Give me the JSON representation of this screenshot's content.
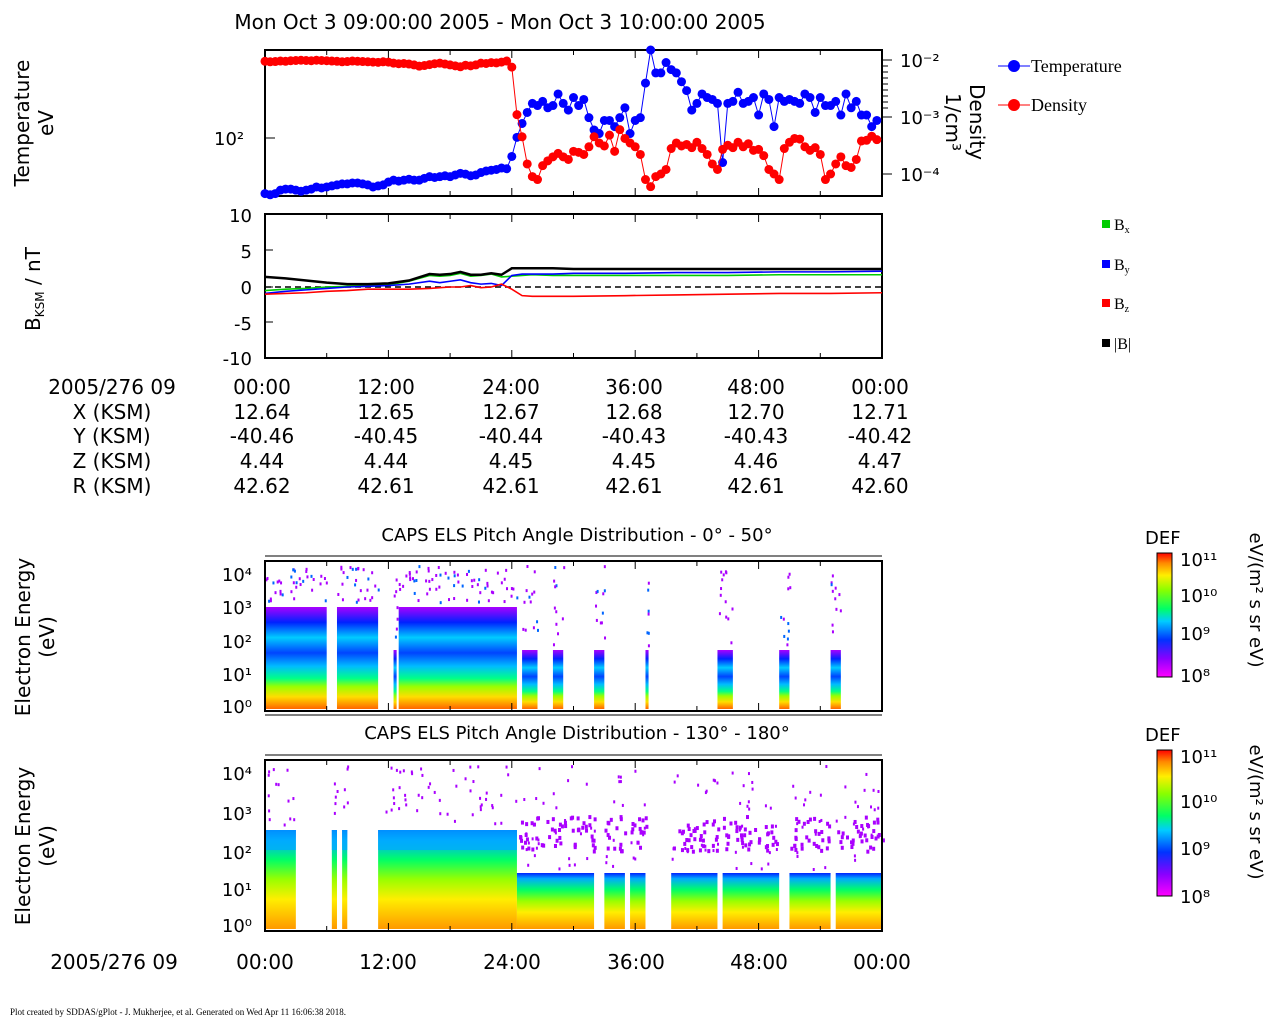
{
  "title": "Mon Oct 3 09:00:00 2005 - Mon Oct 3 10:00:00 2005",
  "footer": "Plot created by SDDAS/gPlot - J. Mukherjee, et al.  Generated on Wed Apr 11 16:06:38 2018.",
  "colors": {
    "temperature": "#0000ff",
    "density": "#ff0000",
    "bx": "#00cc00",
    "by": "#0000ff",
    "bz": "#ff0000",
    "bmag": "#000000"
  },
  "chart_data": [
    {
      "type": "scatter",
      "ylabel_left": [
        "Temperature",
        "eV"
      ],
      "ylabel_right": [
        "Density",
        "1/cm³"
      ],
      "y_left_scale": "log",
      "y_left_tick_label": "10²",
      "y_right_scale": "log",
      "y_right_tick_labels": [
        "10⁻²",
        "10⁻³",
        "10⁻⁴"
      ],
      "legend": [
        "Temperature",
        "Density"
      ],
      "legend_placement": "right",
      "x_minutes": [
        0,
        0.5,
        1,
        1.5,
        2,
        2.5,
        3,
        3.5,
        4,
        4.5,
        5,
        5.5,
        6,
        6.5,
        7,
        7.5,
        8,
        8.5,
        9,
        9.5,
        10,
        10.5,
        11,
        11.5,
        12,
        12.5,
        13,
        13.5,
        14,
        14.5,
        15,
        15.5,
        16,
        16.5,
        17,
        17.5,
        18,
        18.5,
        19,
        19.5,
        20,
        20.5,
        21,
        21.5,
        22,
        22.5,
        23,
        23.5,
        24,
        24.5,
        25,
        25.5,
        26,
        26.5,
        27,
        27.5,
        28,
        28.5,
        29,
        29.5,
        30,
        30.5,
        31,
        31.5,
        32,
        32.5,
        33,
        33.5,
        34,
        34.5,
        35,
        35.5,
        36,
        36.5,
        37,
        37.5,
        38,
        38.5,
        39,
        39.5,
        40,
        40.5,
        41,
        41.5,
        42,
        42.5,
        43,
        43.5,
        44,
        44.5,
        45,
        45.5,
        46,
        46.5,
        47,
        47.5,
        48,
        48.5,
        49,
        49.5,
        50,
        50.5,
        51,
        51.5,
        52,
        52.5,
        53,
        53.5,
        54,
        54.5,
        55,
        55.5,
        56,
        56.5,
        57,
        57.5,
        58,
        58.5,
        59,
        59.5
      ],
      "temperature_eV": [
        44,
        43,
        44,
        47,
        48,
        48,
        47,
        46,
        47,
        48,
        50,
        49,
        50,
        51,
        52,
        53,
        53,
        54,
        54,
        53,
        52,
        50,
        51,
        52,
        55,
        57,
        56,
        57,
        58,
        57,
        57,
        59,
        61,
        60,
        61,
        62,
        61,
        63,
        65,
        64,
        62,
        63,
        66,
        68,
        69,
        70,
        72,
        71,
        90,
        130,
        170,
        210,
        250,
        240,
        260,
        230,
        240,
        300,
        250,
        220,
        280,
        240,
        270,
        190,
        150,
        140,
        180,
        180,
        160,
        190,
        230,
        140,
        180,
        190,
        370,
        700,
        450,
        450,
        550,
        480,
        450,
        380,
        320,
        220,
        250,
        300,
        280,
        270,
        250,
        80,
        250,
        260,
        310,
        250,
        260,
        280,
        200,
        300,
        270,
        160,
        280,
        260,
        270,
        260,
        250,
        300,
        280,
        210,
        280,
        240,
        240,
        260,
        200,
        300,
        230,
        260,
        200,
        200,
        160,
        180
      ],
      "density_cm3": [
        0.0095,
        0.0093,
        0.0094,
        0.0096,
        0.0095,
        0.0097,
        0.0098,
        0.0099,
        0.0098,
        0.0097,
        0.0099,
        0.0098,
        0.0097,
        0.0096,
        0.0095,
        0.0093,
        0.0094,
        0.0096,
        0.0095,
        0.0094,
        0.0093,
        0.0092,
        0.0091,
        0.0093,
        0.0092,
        0.0088,
        0.0086,
        0.0087,
        0.0085,
        0.0082,
        0.0078,
        0.008,
        0.0083,
        0.0086,
        0.0088,
        0.0085,
        0.0082,
        0.0079,
        0.0076,
        0.0081,
        0.0079,
        0.0082,
        0.0088,
        0.0087,
        0.009,
        0.0089,
        0.0092,
        0.0096,
        0.0075,
        0.0011,
        0.00045,
        0.00015,
        9e-05,
        8e-05,
        0.00014,
        0.00017,
        0.0002,
        0.00023,
        0.0002,
        0.00018,
        0.00025,
        0.00024,
        0.00022,
        0.0003,
        0.00045,
        0.00035,
        0.00031,
        0.00048,
        0.00025,
        0.0006,
        0.00042,
        0.00035,
        0.0003,
        0.00022,
        8e-05,
        6e-05,
        9e-05,
        0.0001,
        0.00012,
        0.00028,
        0.00035,
        0.00031,
        0.00033,
        0.00029,
        0.00036,
        0.00028,
        0.00022,
        0.00015,
        0.00012,
        0.00027,
        0.00032,
        0.00029,
        0.00036,
        0.0003,
        0.00034,
        0.00026,
        0.00027,
        0.00021,
        0.00012,
        0.0001,
        8e-05,
        0.00028,
        0.00036,
        0.00042,
        0.00041,
        0.0003,
        0.00026,
        0.00029,
        0.00022,
        8e-05,
        0.0001,
        0.00015,
        0.0002,
        0.00014,
        0.00013,
        0.00018,
        0.00038,
        0.00039,
        0.00046,
        0.0004
      ]
    },
    {
      "type": "line",
      "ylabel": "B_KSM / nT",
      "ylim": [
        -10,
        10
      ],
      "yticks": [
        "10",
        "5",
        "0",
        "-5",
        "-10"
      ],
      "legend": [
        "Bx",
        "By",
        "Bz",
        "|B|"
      ],
      "legend_placement": "right",
      "x_minutes": [
        0,
        2,
        4,
        6,
        8,
        10,
        12,
        14,
        16,
        17,
        18,
        19,
        20,
        21,
        22,
        23,
        24,
        25,
        26,
        28,
        30,
        35,
        40,
        45,
        50,
        55,
        60
      ],
      "series": [
        {
          "name": "Bx",
          "values": [
            -0.5,
            -0.3,
            -0.2,
            0.0,
            0.1,
            0.2,
            0.3,
            0.8,
            1.6,
            1.5,
            1.6,
            1.9,
            1.5,
            1.6,
            1.8,
            1.4,
            1.5,
            1.6,
            1.7,
            1.6,
            1.6,
            1.6,
            1.6,
            1.6,
            1.7,
            1.7,
            1.7
          ]
        },
        {
          "name": "By",
          "values": [
            -0.9,
            -0.6,
            -0.4,
            -0.2,
            0.0,
            0.1,
            0.2,
            0.4,
            0.8,
            0.6,
            0.8,
            1.0,
            0.6,
            0.4,
            0.5,
            0.2,
            1.6,
            1.8,
            1.8,
            1.8,
            1.9,
            1.9,
            2.0,
            2.0,
            2.1,
            2.1,
            2.2
          ]
        },
        {
          "name": "Bz",
          "values": [
            -1.0,
            -0.9,
            -0.8,
            -0.6,
            -0.5,
            -0.3,
            -0.3,
            -0.3,
            -0.2,
            -0.1,
            0.0,
            0.0,
            0.2,
            -0.1,
            0.0,
            0.4,
            -0.3,
            -1.2,
            -1.3,
            -1.3,
            -1.3,
            -1.2,
            -1.1,
            -1.0,
            -0.9,
            -0.9,
            -0.8
          ]
        },
        {
          "name": "|B|",
          "values": [
            1.4,
            1.2,
            0.9,
            0.6,
            0.4,
            0.4,
            0.5,
            0.9,
            1.8,
            1.7,
            1.8,
            2.1,
            1.7,
            1.7,
            1.9,
            1.7,
            2.6,
            2.6,
            2.6,
            2.6,
            2.5,
            2.5,
            2.5,
            2.5,
            2.5,
            2.5,
            2.5
          ]
        }
      ],
      "zero_line": true
    },
    {
      "type": "heatmap",
      "title": "CAPS ELS Pitch Angle Distribution - 0° - 50°",
      "ylabel": [
        "Electron Energy",
        "(eV)"
      ],
      "yticks": [
        "10⁴",
        "10³",
        "10²",
        "10¹",
        "10⁰"
      ],
      "energy_bands_eV": [
        "1",
        "10",
        "100",
        "1000"
      ],
      "segments_minutes": [
        [
          0,
          6
        ],
        [
          7,
          11
        ],
        [
          12.5,
          12.8
        ],
        [
          13,
          24.5
        ],
        [
          25,
          26.5
        ],
        [
          28,
          29
        ],
        [
          32,
          33
        ],
        [
          37,
          37.3
        ],
        [
          44,
          45.5
        ],
        [
          50,
          51
        ],
        [
          55,
          56
        ]
      ],
      "colorbar": {
        "label": "DEF",
        "unit": "eV/(m² s sr eV)",
        "ticks": [
          "10¹¹",
          "10¹⁰",
          "10⁹",
          "10⁸"
        ]
      }
    },
    {
      "type": "heatmap",
      "title": "CAPS ELS Pitch Angle Distribution - 130° - 180°",
      "ylabel": [
        "Electron Energy",
        "(eV)"
      ],
      "yticks": [
        "10⁴",
        "10³",
        "10²",
        "10¹",
        "10⁰"
      ],
      "energy_bands_eV": [
        "1",
        "10",
        "100",
        "1000"
      ],
      "segments_minutes": [
        [
          0,
          3
        ],
        [
          6.5,
          7
        ],
        [
          7.5,
          8
        ],
        [
          11,
          24.5
        ],
        [
          24.5,
          32
        ],
        [
          33,
          35
        ],
        [
          35.5,
          37
        ],
        [
          39.5,
          44
        ],
        [
          44.5,
          50
        ],
        [
          51,
          55
        ],
        [
          55.5,
          60
        ]
      ],
      "colorbar": {
        "label": "DEF",
        "unit": "eV/(m² s sr eV)",
        "ticks": [
          "10¹¹",
          "10¹⁰",
          "10⁹",
          "10⁸"
        ]
      }
    }
  ],
  "ephemeris": {
    "row_labels": [
      "2005/276 09",
      "X (KSM)",
      "Y (KSM)",
      "Z (KSM)",
      "R (KSM)"
    ],
    "columns": [
      [
        "00:00",
        "12.64",
        "-40.46",
        "4.44",
        "42.62"
      ],
      [
        "12:00",
        "12.65",
        "-40.45",
        "4.44",
        "42.61"
      ],
      [
        "24:00",
        "12.67",
        "-40.44",
        "4.45",
        "42.61"
      ],
      [
        "36:00",
        "12.68",
        "-40.43",
        "4.45",
        "42.61"
      ],
      [
        "48:00",
        "12.70",
        "-40.43",
        "4.46",
        "42.61"
      ],
      [
        "00:00",
        "12.71",
        "-40.42",
        "4.47",
        "42.60"
      ]
    ]
  },
  "bottom_axis": {
    "label": "2005/276 09",
    "ticks": [
      "00:00",
      "12:00",
      "24:00",
      "36:00",
      "48:00",
      "00:00"
    ]
  }
}
